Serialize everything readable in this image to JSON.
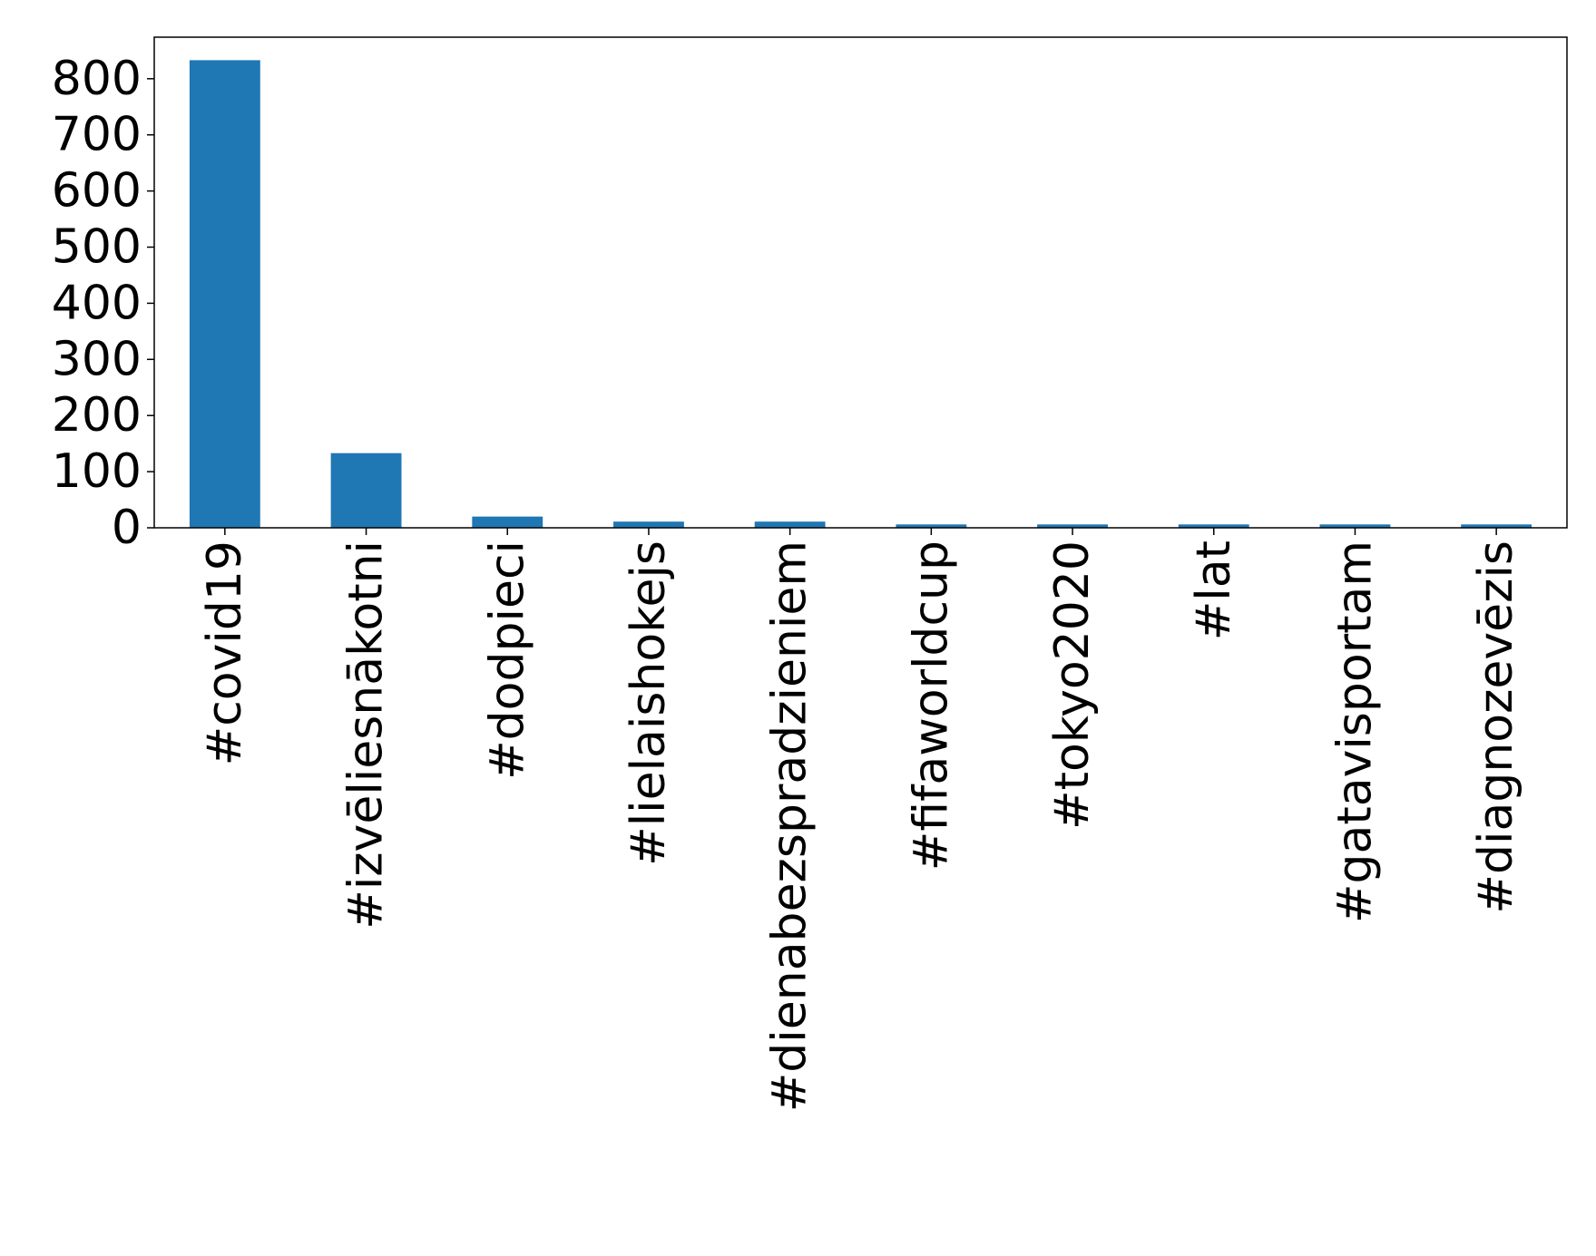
{
  "chart_data": {
    "type": "bar",
    "categories": [
      "#covid19",
      "#izvēliesnākotni",
      "#dodpieci",
      "#lielaishokejs",
      "#dienabezspradzieniem",
      "#fifaworldcup",
      "#tokyo2020",
      "#lat",
      "#gatavisportam",
      "#diagnozevēzis"
    ],
    "values": [
      833,
      133,
      20,
      11,
      11,
      6,
      6,
      6,
      6,
      6
    ],
    "color": "#1f77b4",
    "ylim": [
      0,
      874
    ],
    "yticks": [
      0,
      100,
      200,
      300,
      400,
      500,
      600,
      700,
      800
    ],
    "grid": false
  }
}
